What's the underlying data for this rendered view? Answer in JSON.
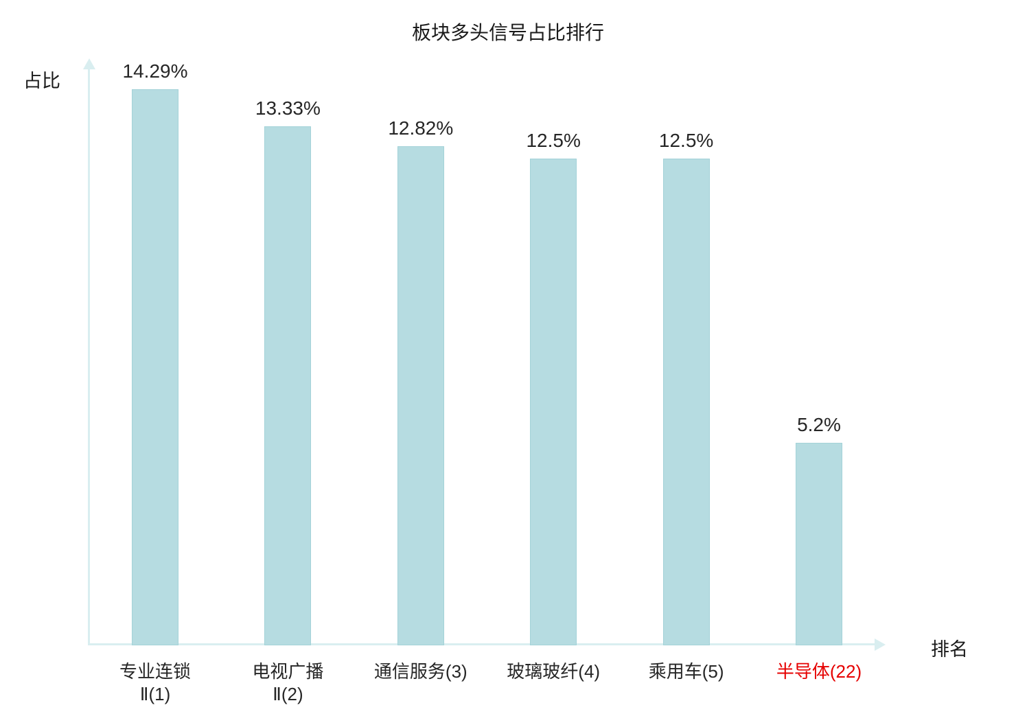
{
  "title": "板块多头信号占比排行",
  "y_axis_label": "占比",
  "x_axis_label": "排名",
  "chart_data": {
    "type": "bar",
    "title": "板块多头信号占比排行",
    "xlabel": "排名",
    "ylabel": "占比",
    "categories": [
      "专业连锁\nⅡ(1)",
      "电视广播\nⅡ(2)",
      "通信服务(3)",
      "玻璃玻纤(4)",
      "乘用车(5)",
      "半导体(22)"
    ],
    "values": [
      14.29,
      13.33,
      12.82,
      12.5,
      12.5,
      5.2
    ],
    "value_labels": [
      "14.29%",
      "13.33%",
      "12.82%",
      "12.5%",
      "12.5%",
      "5.2%"
    ],
    "ylim": [
      0,
      15
    ],
    "grid": false,
    "legend": "none",
    "bar_color": "#b6dce1",
    "bar_border_color": "#a3d2d8",
    "axis_color": "#d9eef0",
    "label_color": "#262626",
    "highlight_index": 5,
    "highlight_label_color": "#e60000"
  }
}
